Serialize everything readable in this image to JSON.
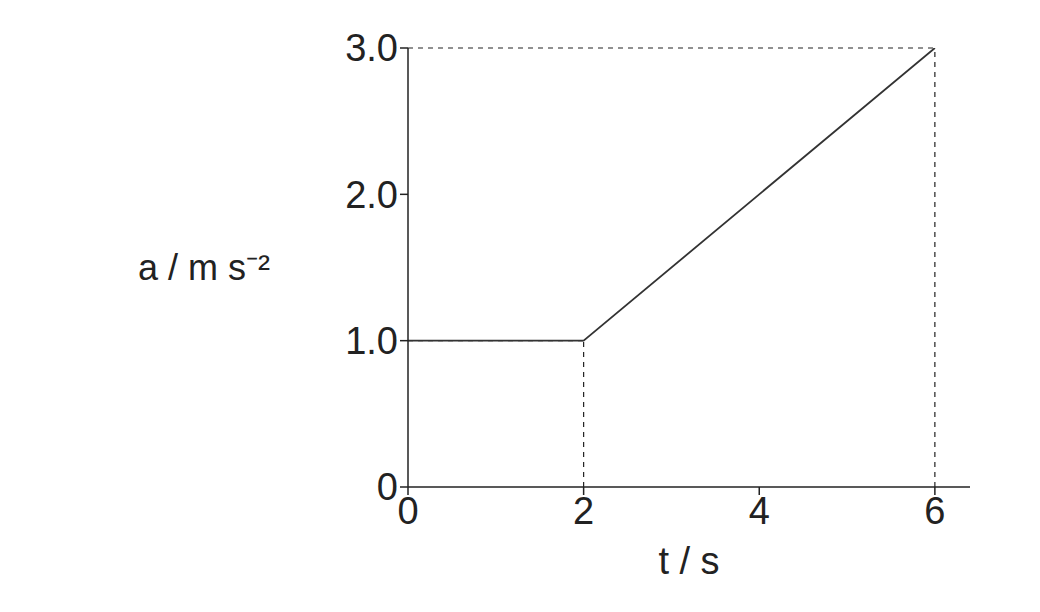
{
  "chart_data": {
    "type": "line",
    "x_label": "t / s",
    "y_label": "a / m s⁻²",
    "x": [
      0,
      2,
      6
    ],
    "values": [
      1,
      1,
      3
    ],
    "color": "#333333",
    "line_style": "solid",
    "xlim": [
      0,
      6.4
    ],
    "xticks": [
      0,
      2,
      4,
      6
    ],
    "ylim": [
      0,
      3
    ],
    "yticks": [
      0,
      {
        "value": 1,
        "label": "1.0"
      },
      {
        "value": 2,
        "label": "2.0"
      },
      {
        "value": 3,
        "label": "3.0"
      }
    ]
  }
}
